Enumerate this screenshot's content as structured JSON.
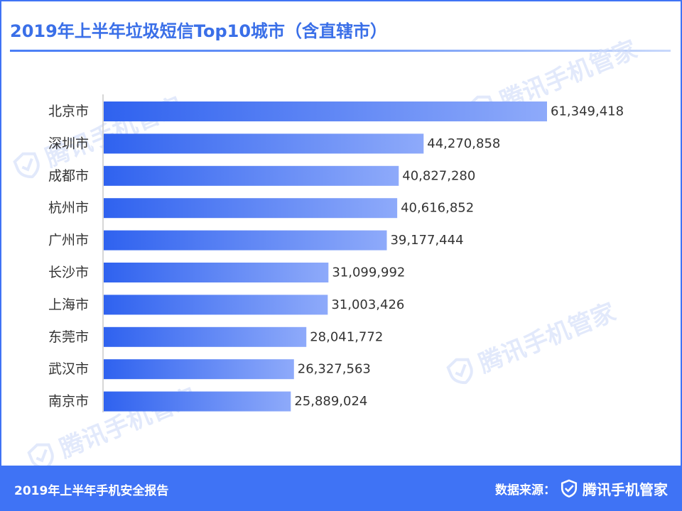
{
  "header": {
    "title": "2019年上半年垃圾短信Top10城市（含直辖市）"
  },
  "watermark": {
    "text": "腾讯手机管家",
    "icon": "shield-check-icon"
  },
  "chart_data": {
    "type": "bar",
    "orientation": "horizontal",
    "title": "2019年上半年垃圾短信Top10城市（含直辖市）",
    "categories": [
      "北京市",
      "深圳市",
      "成都市",
      "杭州市",
      "广州市",
      "长沙市",
      "上海市",
      "东莞市",
      "武汉市",
      "南京市"
    ],
    "values": [
      61349418,
      44270858,
      40827280,
      40616852,
      39177444,
      31099992,
      31003426,
      28041772,
      26327563,
      25889024
    ],
    "value_labels": [
      "61,349,418",
      "44,270,858",
      "40,827,280",
      "40,616,852",
      "39,177,444",
      "31,099,992",
      "31,003,426",
      "28,041,772",
      "26,327,563",
      "25,889,024"
    ],
    "xlim": [
      0,
      61349418
    ],
    "grid": false,
    "legend": "none",
    "colors": {
      "bar_start": "#2f62ef",
      "bar_end": "#8eaafa",
      "axis": "#c9c9c9",
      "label": "#333333"
    }
  },
  "footer": {
    "report": "2019年上半年手机安全报告",
    "source_label": "数据来源：",
    "brand": "腾讯手机管家",
    "brand_icon": "shield-check-icon"
  },
  "colors": {
    "accent": "#3f73f5",
    "title": "#3a6fe8",
    "footer_bg": "#3f73f5"
  }
}
